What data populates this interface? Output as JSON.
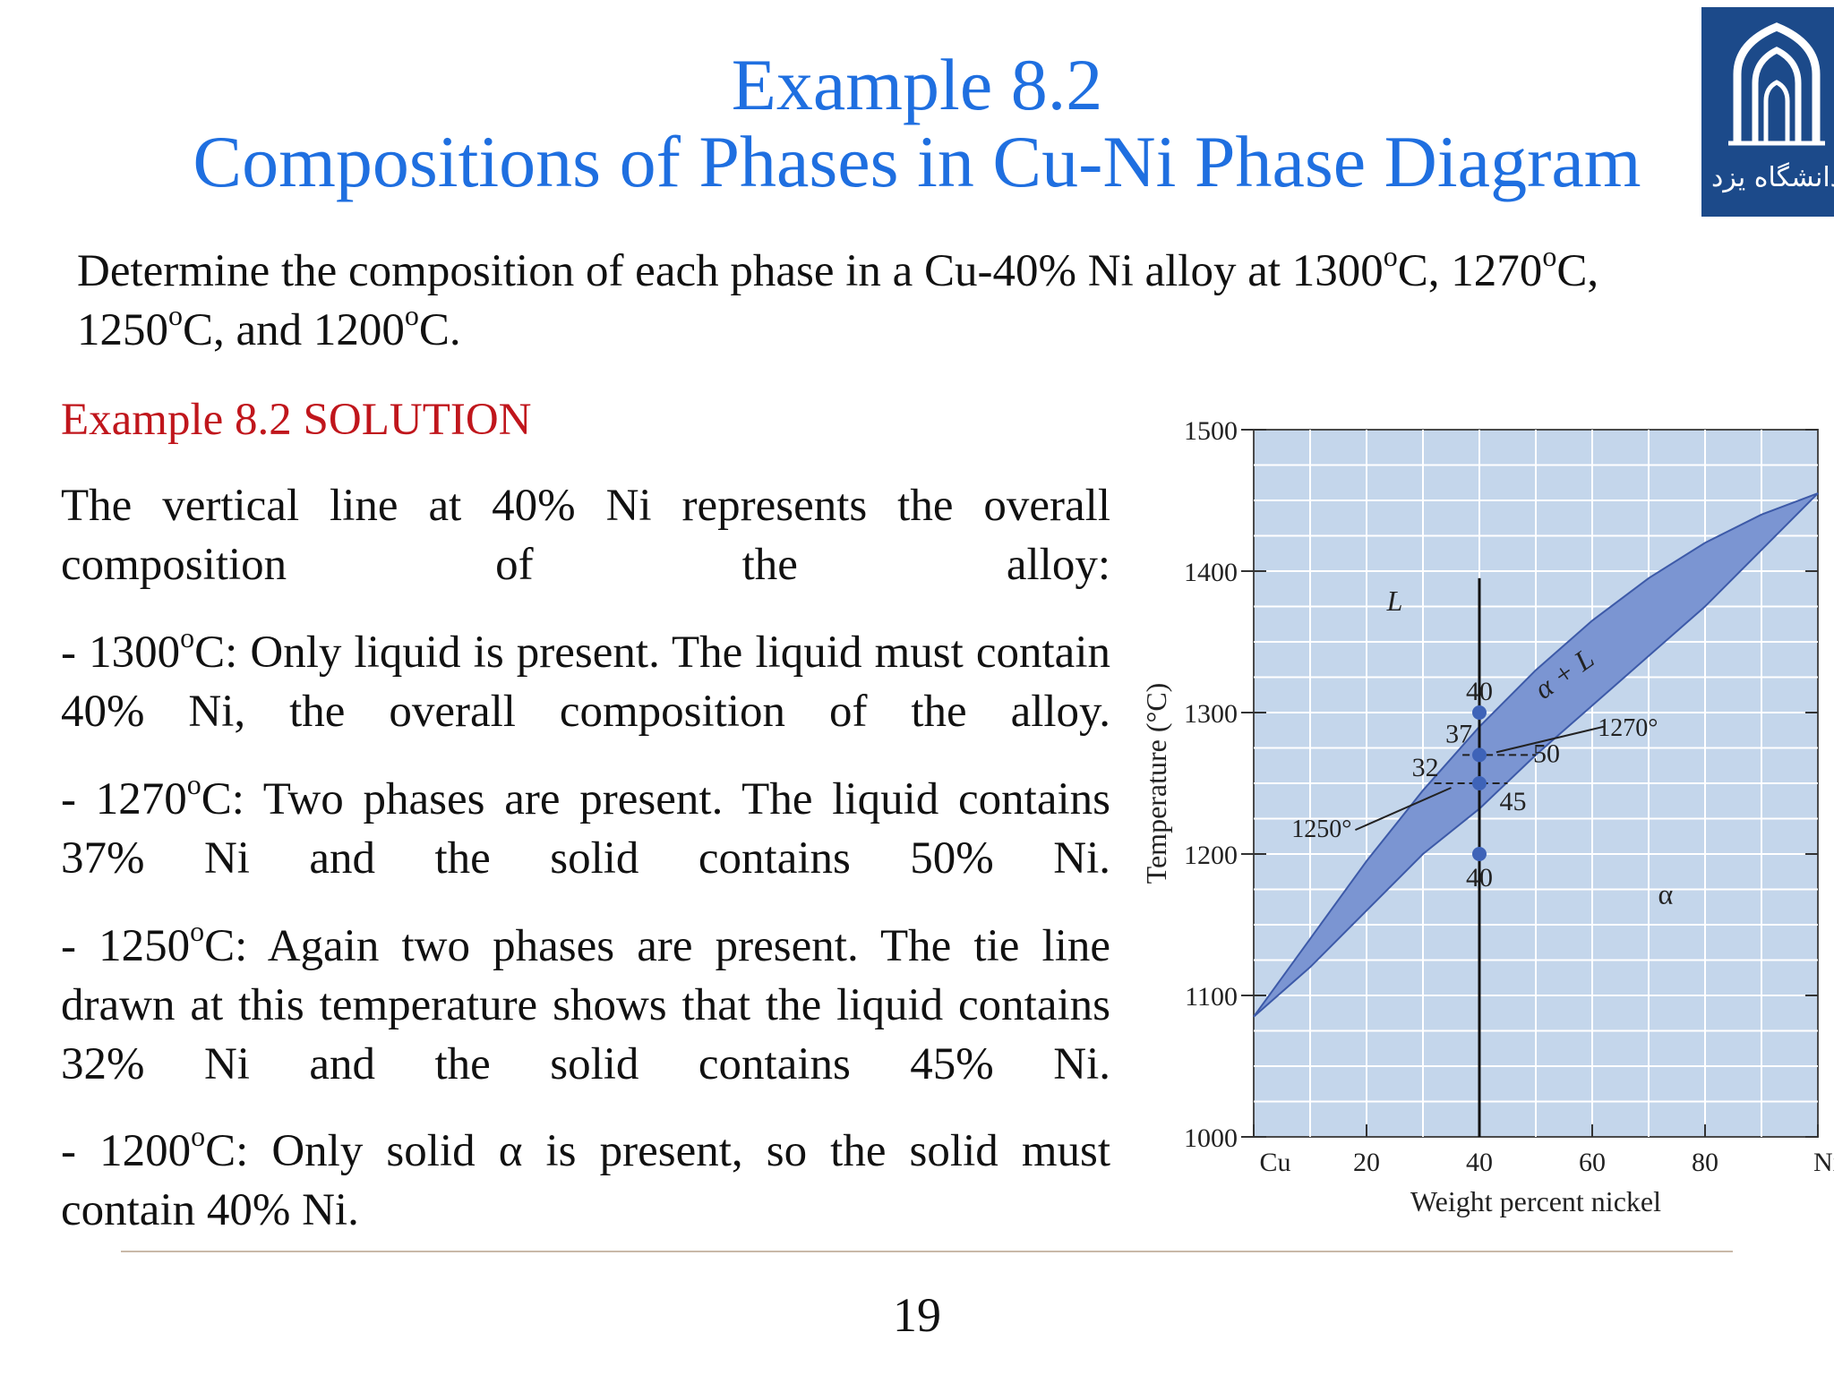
{
  "slide": {
    "title_line1": "Example 8.2",
    "title_line2": "Compositions of Phases in Cu-Ni Phase Diagram",
    "problem": {
      "pre": "Determine the composition of each phase in a Cu-40% Ni alloy at 1300",
      "t1_tail": "C, 1270",
      "t2_tail": "C,",
      "line2_pre": "1250",
      "t3_tail": "C, and 1200",
      "t4_tail": "C.",
      "degree_mark": "o"
    },
    "solution_heading": "Example 8.2 SOLUTION",
    "para_overall": "The vertical line at 40% Ni represents the overall composition of the alloy:",
    "para_1300": {
      "temp": "- 1300",
      "text": "C: Only liquid is present. The liquid must contain 40% Ni, the overall composition of the alloy."
    },
    "para_1270": {
      "temp": "- 1270",
      "text": "C: Two phases are present. The liquid contains 37% Ni and the solid contains 50% Ni."
    },
    "para_1250": {
      "temp": "- 1250",
      "text": "C: Again two phases are present. The tie line drawn at this temperature shows that the liquid contains 32% Ni and the solid contains 45% Ni."
    },
    "para_1200": {
      "temp": "- 1200",
      "text": "C: Only solid α is present, so the solid must contain 40% Ni."
    },
    "page_number": "19",
    "logo_caption": "دانشگاه یزد"
  },
  "colors": {
    "title": "#1f6fe0",
    "solution_heading": "#c0161c",
    "chart_background": "#c4d6eb",
    "two_phase_region": "#7b95d2",
    "logo_background": "#1c4a8a"
  },
  "chart_data": {
    "type": "phase-diagram",
    "xlabel": "Weight percent nickel",
    "ylabel": "Temperature (°C)",
    "xlim": [
      0,
      100
    ],
    "ylim": [
      1000,
      1500
    ],
    "x_ticks": [
      {
        "value": 0,
        "label": "Cu"
      },
      {
        "value": 20,
        "label": "20"
      },
      {
        "value": 40,
        "label": "40"
      },
      {
        "value": 60,
        "label": "60"
      },
      {
        "value": 80,
        "label": "80"
      },
      {
        "value": 100,
        "label": "Ni"
      }
    ],
    "y_ticks": [
      1000,
      1100,
      1200,
      1300,
      1400,
      1500
    ],
    "grid": true,
    "liquidus": [
      [
        0,
        1085
      ],
      [
        10,
        1140
      ],
      [
        20,
        1195
      ],
      [
        30,
        1245
      ],
      [
        40,
        1290
      ],
      [
        50,
        1330
      ],
      [
        60,
        1365
      ],
      [
        70,
        1395
      ],
      [
        80,
        1420
      ],
      [
        90,
        1440
      ],
      [
        100,
        1455
      ]
    ],
    "solidus": [
      [
        0,
        1085
      ],
      [
        10,
        1120
      ],
      [
        20,
        1160
      ],
      [
        30,
        1200
      ],
      [
        40,
        1232
      ],
      [
        50,
        1270
      ],
      [
        60,
        1305
      ],
      [
        70,
        1340
      ],
      [
        80,
        1375
      ],
      [
        90,
        1415
      ],
      [
        100,
        1455
      ]
    ],
    "composition_line_x": 40,
    "points": [
      {
        "x": 40,
        "y": 1300,
        "label": "40"
      },
      {
        "x": 40,
        "y": 1270,
        "label": ""
      },
      {
        "x": 40,
        "y": 1250,
        "label": ""
      },
      {
        "x": 40,
        "y": 1200,
        "label": "40"
      }
    ],
    "tie_lines": [
      {
        "temperature": 1270,
        "from": 37,
        "to": 50,
        "from_label": "37",
        "to_label": "50",
        "temp_label": "1270°"
      },
      {
        "temperature": 1250,
        "from": 32,
        "to": 45,
        "from_label": "32",
        "to_label": "45",
        "temp_label": "1250°"
      }
    ],
    "region_labels": [
      {
        "text": "L",
        "x": 25,
        "y": 1372
      },
      {
        "text": "α + L",
        "x": 56,
        "y": 1322
      },
      {
        "text": "α",
        "x": 73,
        "y": 1165
      }
    ]
  }
}
